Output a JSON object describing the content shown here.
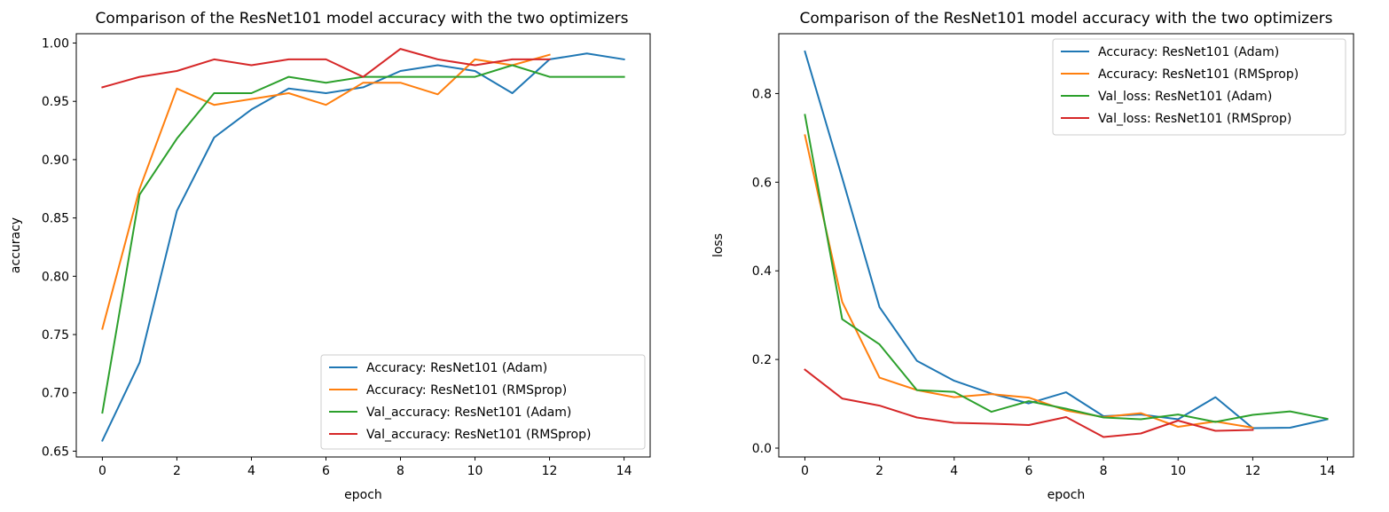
{
  "chart_data": [
    {
      "type": "line",
      "title": "Comparison of the ResNet101 model accuracy with the two optimizers",
      "xlabel": "epoch",
      "ylabel": "accuracy",
      "xlim": [
        -0.7,
        14.7
      ],
      "ylim": [
        0.645,
        1.008
      ],
      "xticks": [
        0,
        2,
        4,
        6,
        8,
        10,
        12,
        14
      ],
      "yticks": [
        0.65,
        0.7,
        0.75,
        0.8,
        0.85,
        0.9,
        0.95,
        1.0
      ],
      "ytick_labels": [
        "0.65",
        "0.70",
        "0.75",
        "0.80",
        "0.85",
        "0.90",
        "0.95",
        "1.00"
      ],
      "grid": false,
      "legend_position": "lower-right",
      "series": [
        {
          "name": "Accuracy: ResNet101 (Adam)",
          "color": "#1f77b4",
          "x": [
            0,
            1,
            2,
            3,
            4,
            5,
            6,
            7,
            8,
            9,
            10,
            11,
            12,
            13,
            14
          ],
          "y": [
            0.659,
            0.726,
            0.856,
            0.919,
            0.943,
            0.961,
            0.957,
            0.962,
            0.976,
            0.981,
            0.976,
            0.957,
            0.986,
            0.991,
            0.986
          ]
        },
        {
          "name": "Accuracy: ResNet101 (RMSprop)",
          "color": "#ff7f0e",
          "x": [
            0,
            1,
            2,
            3,
            4,
            5,
            6,
            7,
            8,
            9,
            10,
            11,
            12
          ],
          "y": [
            0.755,
            0.875,
            0.961,
            0.947,
            0.952,
            0.957,
            0.947,
            0.966,
            0.966,
            0.956,
            0.986,
            0.981,
            0.99
          ]
        },
        {
          "name": "Val_accuracy: ResNet101 (Adam)",
          "color": "#2ca02c",
          "x": [
            0,
            1,
            2,
            3,
            4,
            5,
            6,
            7,
            8,
            9,
            10,
            11,
            12,
            13,
            14
          ],
          "y": [
            0.683,
            0.87,
            0.918,
            0.957,
            0.957,
            0.971,
            0.966,
            0.971,
            0.971,
            0.971,
            0.971,
            0.981,
            0.971,
            0.971,
            0.971
          ]
        },
        {
          "name": "Val_accuracy: ResNet101 (RMSprop)",
          "color": "#d62728",
          "x": [
            0,
            1,
            2,
            3,
            4,
            5,
            6,
            7,
            8,
            9,
            10,
            11,
            12
          ],
          "y": [
            0.962,
            0.971,
            0.976,
            0.986,
            0.981,
            0.986,
            0.986,
            0.971,
            0.995,
            0.986,
            0.981,
            0.986,
            0.986
          ]
        }
      ]
    },
    {
      "type": "line",
      "title": "Comparison of the ResNet101 model accuracy with the two optimizers",
      "xlabel": "epoch",
      "ylabel": "loss",
      "xlim": [
        -0.7,
        14.7
      ],
      "ylim": [
        -0.02,
        0.935
      ],
      "xticks": [
        0,
        2,
        4,
        6,
        8,
        10,
        12,
        14
      ],
      "yticks": [
        0.0,
        0.2,
        0.4,
        0.6,
        0.8
      ],
      "ytick_labels": [
        "0.0",
        "0.2",
        "0.4",
        "0.6",
        "0.8"
      ],
      "grid": false,
      "legend_position": "upper-right",
      "series": [
        {
          "name": "Accuracy: ResNet101 (Adam)",
          "color": "#1f77b4",
          "x": [
            0,
            1,
            2,
            3,
            4,
            5,
            6,
            7,
            8,
            9,
            10,
            11,
            12,
            13,
            14
          ],
          "y": [
            0.895,
            0.61,
            0.318,
            0.197,
            0.152,
            0.123,
            0.101,
            0.126,
            0.072,
            0.076,
            0.065,
            0.115,
            0.045,
            0.046,
            0.065
          ]
        },
        {
          "name": "Accuracy: ResNet101 (RMSprop)",
          "color": "#ff7f0e",
          "x": [
            0,
            1,
            2,
            3,
            4,
            5,
            6,
            7,
            8,
            9,
            10,
            11,
            12
          ],
          "y": [
            0.706,
            0.33,
            0.159,
            0.131,
            0.115,
            0.122,
            0.114,
            0.085,
            0.07,
            0.079,
            0.048,
            0.06,
            0.046
          ]
        },
        {
          "name": "Val_loss: ResNet101 (Adam)",
          "color": "#2ca02c",
          "x": [
            0,
            1,
            2,
            3,
            4,
            5,
            6,
            7,
            8,
            9,
            10,
            11,
            12,
            13,
            14
          ],
          "y": [
            0.752,
            0.291,
            0.234,
            0.131,
            0.127,
            0.082,
            0.106,
            0.089,
            0.069,
            0.065,
            0.076,
            0.059,
            0.075,
            0.083,
            0.066
          ]
        },
        {
          "name": "Val_loss: ResNet101 (RMSprop)",
          "color": "#d62728",
          "x": [
            0,
            1,
            2,
            3,
            4,
            5,
            6,
            7,
            8,
            9,
            10,
            11,
            12
          ],
          "y": [
            0.177,
            0.112,
            0.096,
            0.069,
            0.057,
            0.055,
            0.052,
            0.07,
            0.025,
            0.033,
            0.062,
            0.039,
            0.041
          ]
        }
      ]
    }
  ]
}
